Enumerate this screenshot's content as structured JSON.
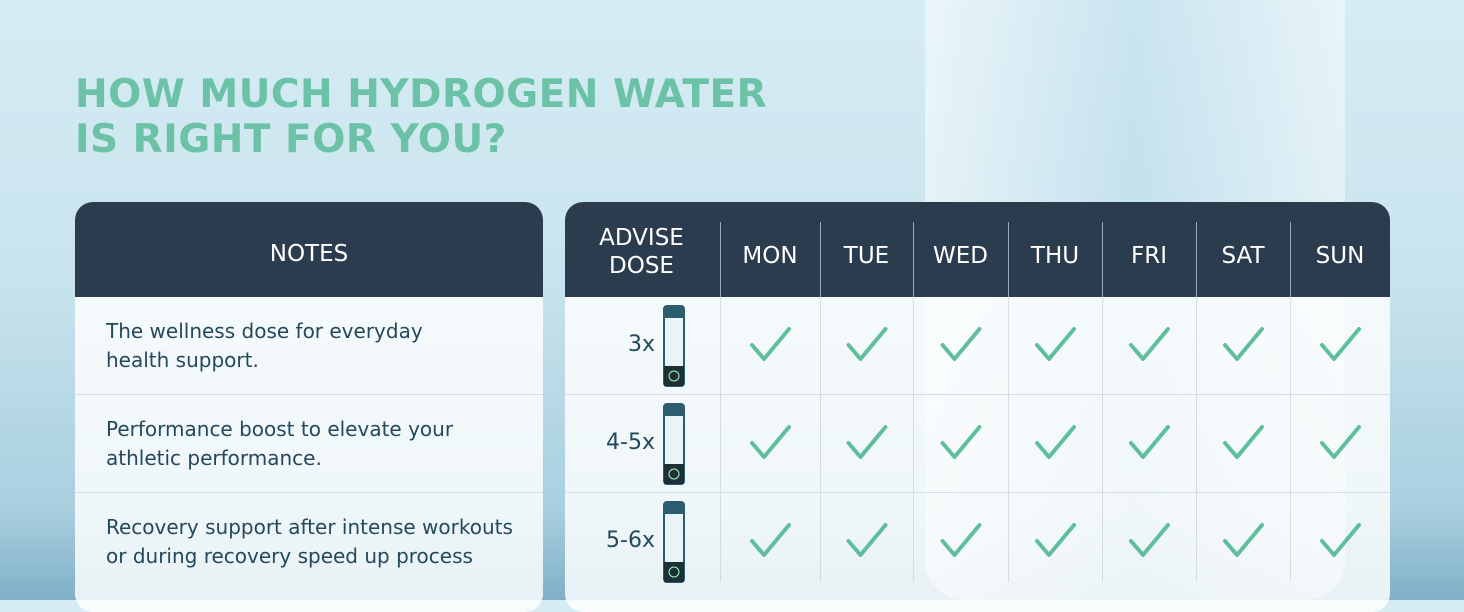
{
  "title": {
    "lines": [
      "HOW MUCH HYDROGEN WATER",
      "IS RIGHT FOR YOU?"
    ]
  },
  "notes_table": {
    "header": "NOTES",
    "rows": [
      [
        "The wellness dose for everyday",
        "health support."
      ],
      [
        "Performance boost to elevate your",
        "athletic performance."
      ],
      [
        "Recovery support after intense workouts",
        "or during recovery speed up process"
      ]
    ]
  },
  "schedule_table": {
    "header": {
      "dose": [
        "ADVISE",
        "DOSE"
      ],
      "days": [
        "MON",
        "TUE",
        "WED",
        "THU",
        "FRI",
        "SAT",
        "SUN"
      ]
    },
    "doses": [
      "3x",
      "4-5x",
      "5-6x"
    ]
  }
}
